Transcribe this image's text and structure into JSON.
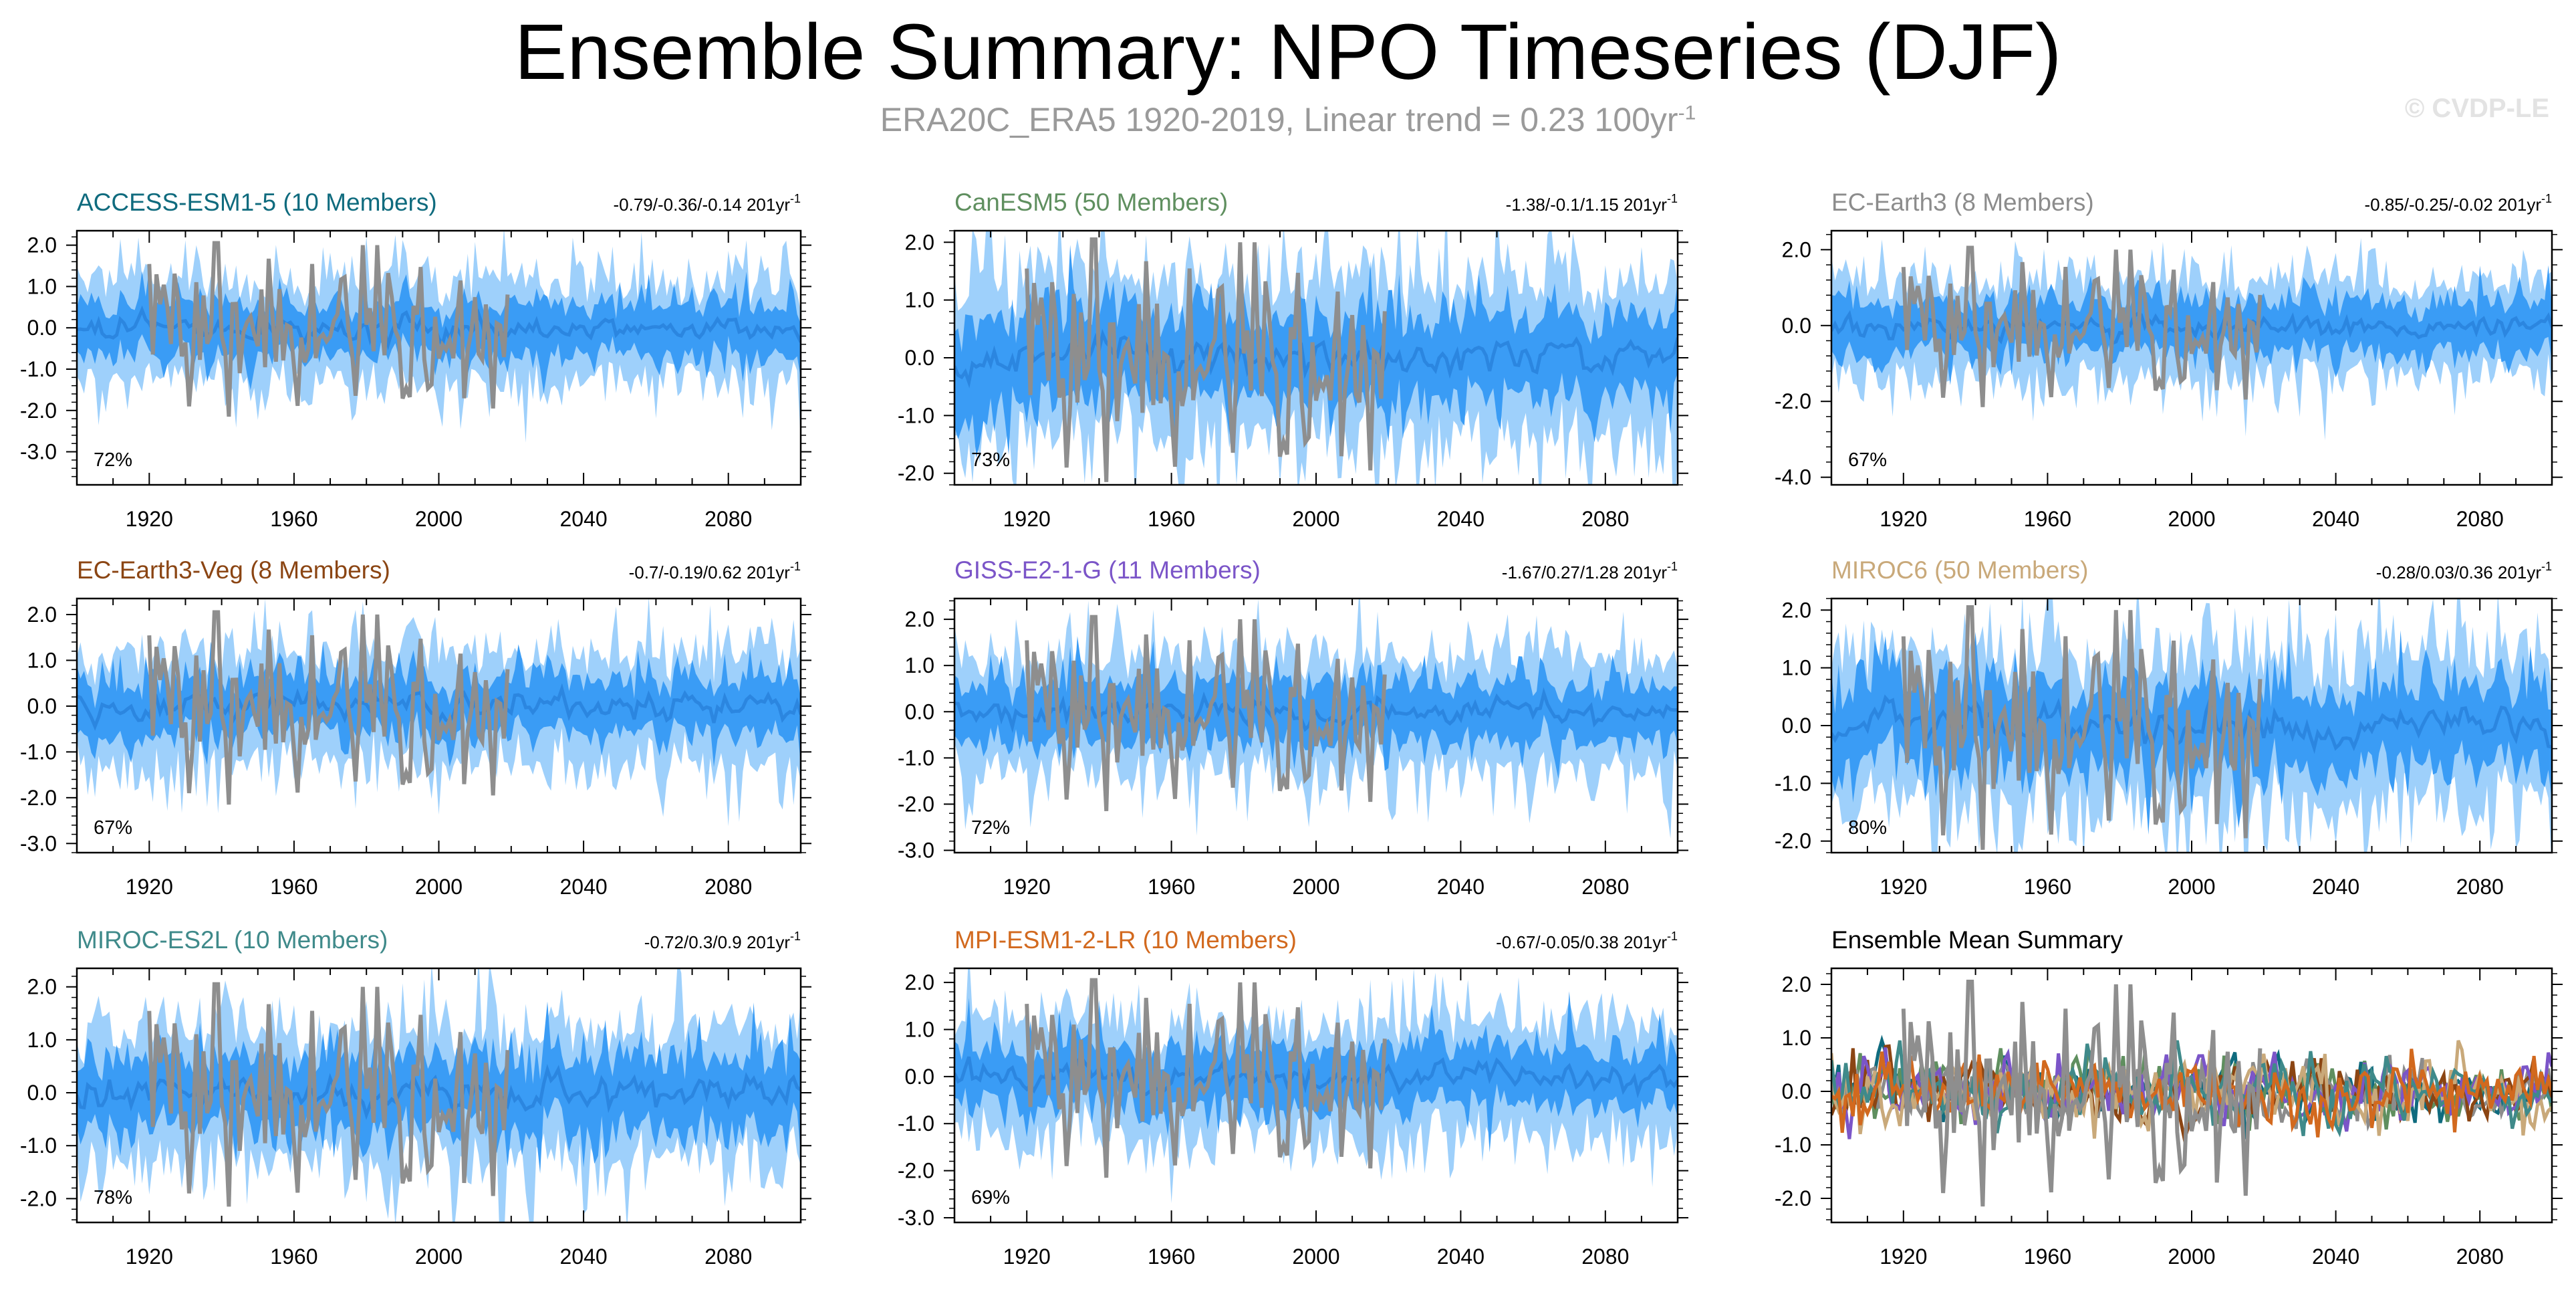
{
  "title": "Ensemble Summary: NPO Timeseries (DJF)",
  "subtitle": {
    "text": "ERA20C_ERA5 1920-2019, Linear trend = 0.23 100yr",
    "superscript": "-1"
  },
  "credit": "© CVDP-LE",
  "colors": {
    "outer_band": "#9ed0fb",
    "inner_band": "#3a9cf5",
    "ensemble_mean": "#2b86e0",
    "observations": "#8e8e8e"
  },
  "chart_data": [
    {
      "type": "area",
      "title": "ACCESS-ESM1-5 (10 Members)",
      "title_color": "#0f6b7e",
      "trend_text": "-0.79/-0.36/-0.14 201yr",
      "trend_sup": "-1",
      "percent_text": "72%",
      "x_range": [
        1900,
        2100
      ],
      "x_ticks": [
        1920,
        1960,
        2000,
        2040,
        2080
      ],
      "ylim": [
        -3.8,
        2.35
      ],
      "y_ticks": [
        2,
        1,
        0,
        -1,
        -2,
        -3
      ],
      "y_tick_labels": [
        "2.0",
        "1.0",
        "0.0",
        "-1.0",
        "-2.0",
        "-3.0"
      ],
      "outer_spread": 1.35,
      "inner_spread": 0.72,
      "seed": 11
    },
    {
      "type": "area",
      "title": "CanESM5 (50 Members)",
      "title_color": "#5f8f5f",
      "trend_text": "-1.38/-0.1/1.15 201yr",
      "trend_sup": "-1",
      "percent_text": "73%",
      "x_range": [
        1900,
        2100
      ],
      "x_ticks": [
        1920,
        1960,
        2000,
        2040,
        2080
      ],
      "ylim": [
        -2.2,
        2.2
      ],
      "y_ticks": [
        2,
        1,
        0,
        -1,
        -2
      ],
      "y_tick_labels": [
        "2.0",
        "1.0",
        "0.0",
        "-1.0",
        "-2.0"
      ],
      "outer_spread": 1.55,
      "inner_spread": 0.85,
      "seed": 23
    },
    {
      "type": "area",
      "title": "EC-Earth3 (8 Members)",
      "title_color": "#8c8c8c",
      "trend_text": "-0.85/-0.25/-0.02 201yr",
      "trend_sup": "-1",
      "percent_text": "67%",
      "x_range": [
        1900,
        2100
      ],
      "x_ticks": [
        1920,
        1960,
        2000,
        2040,
        2080
      ],
      "ylim": [
        -4.2,
        2.5
      ],
      "y_ticks": [
        2,
        0,
        -2,
        -4
      ],
      "y_tick_labels": [
        "2.0",
        "0.0",
        "-2.0",
        "-4.0"
      ],
      "outer_spread": 1.4,
      "inner_spread": 0.75,
      "seed": 37
    },
    {
      "type": "area",
      "title": "EC-Earth3-Veg (8 Members)",
      "title_color": "#8b4513",
      "trend_text": "-0.7/-0.19/0.62 201yr",
      "trend_sup": "-1",
      "percent_text": "67%",
      "x_range": [
        1900,
        2100
      ],
      "x_ticks": [
        1920,
        1960,
        2000,
        2040,
        2080
      ],
      "ylim": [
        -3.2,
        2.35
      ],
      "y_ticks": [
        2,
        1,
        0,
        -1,
        -2,
        -3
      ],
      "y_tick_labels": [
        "2.0",
        "1.0",
        "0.0",
        "-1.0",
        "-2.0",
        "-3.0"
      ],
      "outer_spread": 1.35,
      "inner_spread": 0.72,
      "seed": 41
    },
    {
      "type": "area",
      "title": "GISS-E2-1-G (11 Members)",
      "title_color": "#7b55c8",
      "trend_text": "-1.67/0.27/1.28 201yr",
      "trend_sup": "-1",
      "percent_text": "72%",
      "x_range": [
        1900,
        2100
      ],
      "x_ticks": [
        1920,
        1960,
        2000,
        2040,
        2080
      ],
      "ylim": [
        -3.05,
        2.45
      ],
      "y_ticks": [
        2,
        1,
        0,
        -1,
        -2,
        -3
      ],
      "y_tick_labels": [
        "2.0",
        "1.0",
        "0.0",
        "-1.0",
        "-2.0",
        "-3.0"
      ],
      "outer_spread": 1.4,
      "inner_spread": 0.75,
      "seed": 53
    },
    {
      "type": "area",
      "title": "MIROC6 (50 Members)",
      "title_color": "#c9a97a",
      "trend_text": "-0.28/0.03/0.36 201yr",
      "trend_sup": "-1",
      "percent_text": "80%",
      "x_range": [
        1900,
        2100
      ],
      "x_ticks": [
        1920,
        1960,
        2000,
        2040,
        2080
      ],
      "ylim": [
        -2.2,
        2.2
      ],
      "y_ticks": [
        2,
        1,
        0,
        -1,
        -2
      ],
      "y_tick_labels": [
        "2.0",
        "1.0",
        "0.0",
        "-1.0",
        "-2.0"
      ],
      "outer_spread": 1.45,
      "inner_spread": 0.8,
      "seed": 67
    },
    {
      "type": "area",
      "title": "MIROC-ES2L (10 Members)",
      "title_color": "#3f8a8a",
      "trend_text": "-0.72/0.3/0.9 201yr",
      "trend_sup": "-1",
      "percent_text": "78%",
      "x_range": [
        1900,
        2100
      ],
      "x_ticks": [
        1920,
        1960,
        2000,
        2040,
        2080
      ],
      "ylim": [
        -2.45,
        2.35
      ],
      "y_ticks": [
        2,
        1,
        0,
        -1,
        -2
      ],
      "y_tick_labels": [
        "2.0",
        "1.0",
        "0.0",
        "-1.0",
        "-2.0"
      ],
      "outer_spread": 1.4,
      "inner_spread": 0.78,
      "seed": 71
    },
    {
      "type": "area",
      "title": "MPI-ESM1-2-LR (10 Members)",
      "title_color": "#d2691e",
      "trend_text": "-0.67/-0.05/0.38 201yr",
      "trend_sup": "-1",
      "percent_text": "69%",
      "x_range": [
        1900,
        2100
      ],
      "x_ticks": [
        1920,
        1960,
        2000,
        2040,
        2080
      ],
      "ylim": [
        -3.1,
        2.3
      ],
      "y_ticks": [
        2,
        1,
        0,
        -1,
        -2,
        -3
      ],
      "y_tick_labels": [
        "2.0",
        "1.0",
        "0.0",
        "-1.0",
        "-2.0",
        "-3.0"
      ],
      "outer_spread": 1.35,
      "inner_spread": 0.72,
      "seed": 83
    },
    {
      "type": "line",
      "title": "Ensemble Mean Summary",
      "title_color": "#000000",
      "trend_text": "",
      "trend_sup": "",
      "percent_text": "",
      "x_range": [
        1900,
        2100
      ],
      "x_ticks": [
        1920,
        1960,
        2000,
        2040,
        2080
      ],
      "ylim": [
        -2.45,
        2.3
      ],
      "y_ticks": [
        2,
        1,
        0,
        -1,
        -2
      ],
      "y_tick_labels": [
        "2.0",
        "1.0",
        "0.0",
        "-1.0",
        "-2.0"
      ],
      "seed": 97,
      "series": [
        {
          "color": "#0f6b7e"
        },
        {
          "color": "#5f8f5f"
        },
        {
          "color": "#8c8c8c"
        },
        {
          "color": "#8b4513"
        },
        {
          "color": "#7b55c8"
        },
        {
          "color": "#c9a97a"
        },
        {
          "color": "#3f8a8a"
        },
        {
          "color": "#d2691e"
        }
      ]
    }
  ]
}
